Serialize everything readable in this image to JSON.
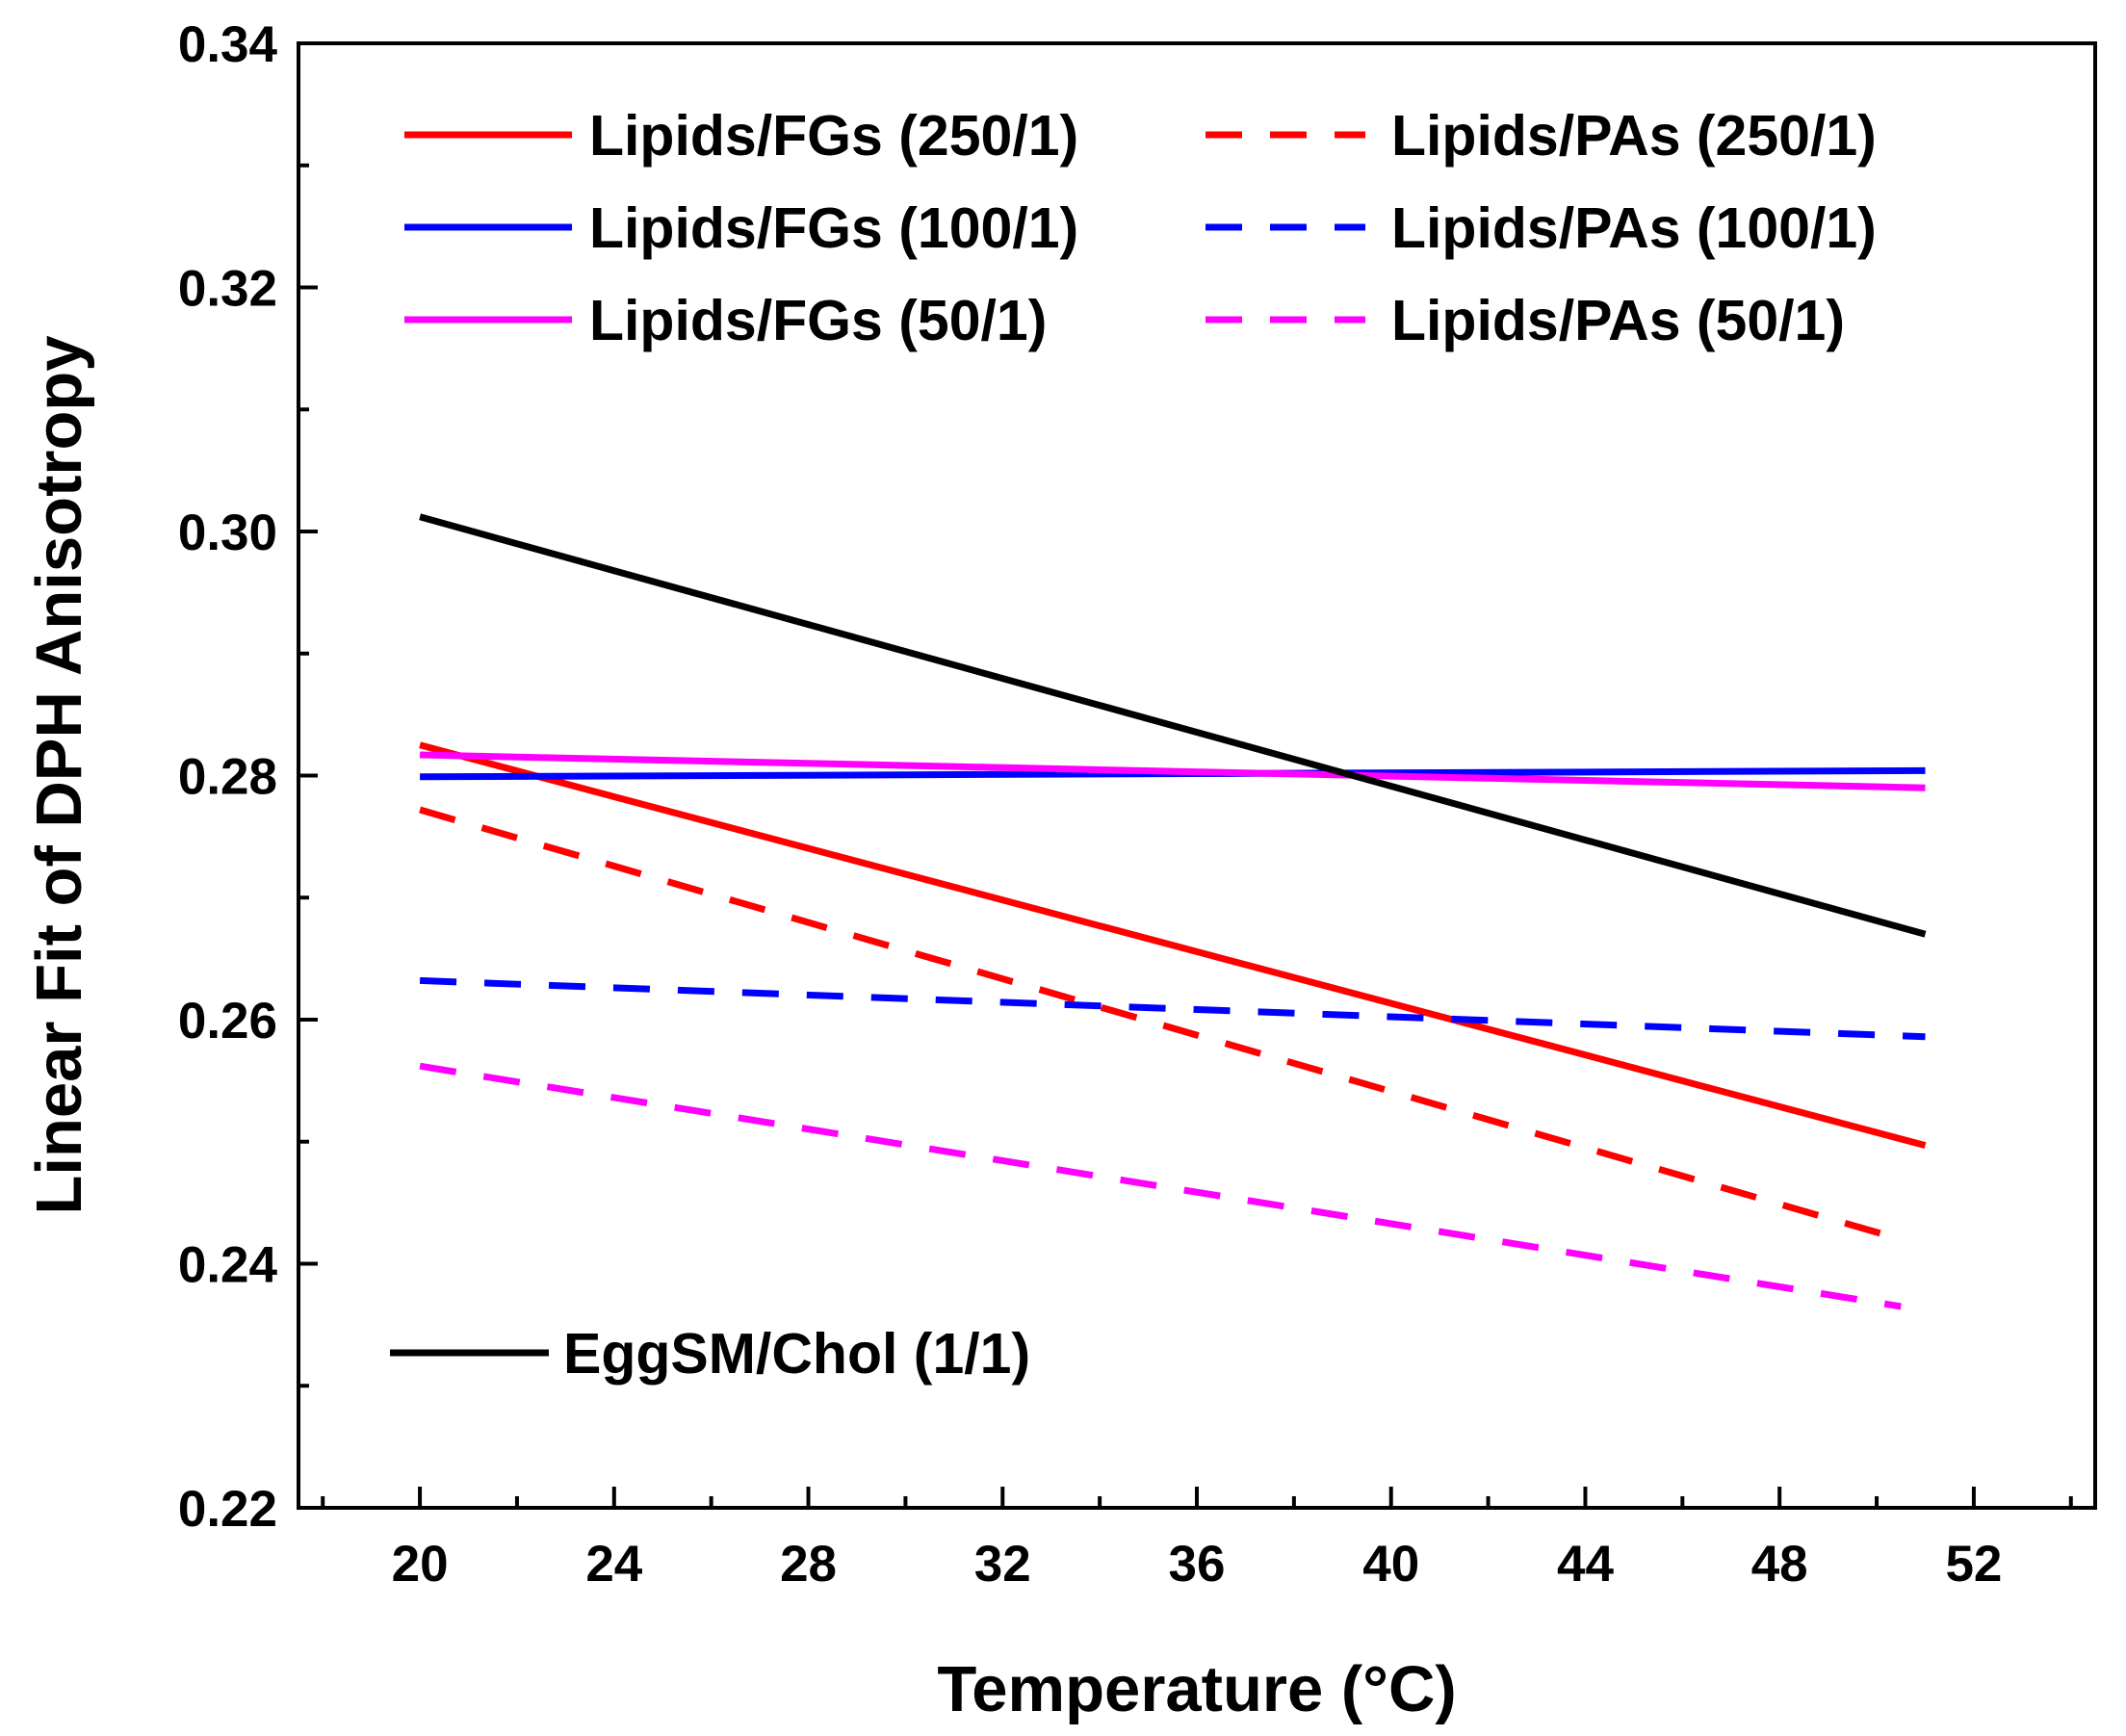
{
  "chart_data": {
    "type": "line",
    "title": "",
    "xlabel": "Temperature (°C)",
    "ylabel": "Linear Fit of DPH Anisotropy",
    "xlim": [
      17.5,
      54.5
    ],
    "ylim": [
      0.22,
      0.34
    ],
    "xticks": [
      20,
      24,
      28,
      32,
      36,
      40,
      44,
      48,
      52
    ],
    "xtick_labels": [
      "20",
      "24",
      "28",
      "32",
      "36",
      "40",
      "44",
      "48",
      "52"
    ],
    "yticks": [
      0.22,
      0.24,
      0.26,
      0.28,
      0.3,
      0.32,
      0.34
    ],
    "ytick_labels": [
      "0.22",
      "0.24",
      "0.26",
      "0.28",
      "0.30",
      "0.32",
      "0.34"
    ],
    "x_minor_step": 2,
    "y_minor_step": 0.01,
    "grid": false,
    "legend_position": "top",
    "series": [
      {
        "name": "Lipids/FGs (250/1)",
        "color": "#ff0000",
        "style": "solid",
        "x": [
          20,
          51
        ],
        "values": [
          0.2825,
          0.2497
        ]
      },
      {
        "name": "Lipids/FGs (100/1)",
        "color": "#0000ff",
        "style": "solid",
        "x": [
          20,
          51
        ],
        "values": [
          0.2799,
          0.2804
        ]
      },
      {
        "name": "Lipids/FGs (50/1)",
        "color": "#ff00ff",
        "style": "solid",
        "x": [
          20,
          51
        ],
        "values": [
          0.2817,
          0.279
        ]
      },
      {
        "name": "Lipids/PAs (250/1)",
        "color": "#ff0000",
        "style": "dashed",
        "x": [
          20,
          50.5
        ],
        "values": [
          0.2772,
          0.242
        ]
      },
      {
        "name": "Lipids/PAs (100/1)",
        "color": "#0000ff",
        "style": "dashed",
        "x": [
          20,
          51
        ],
        "values": [
          0.2632,
          0.2586
        ]
      },
      {
        "name": "Lipids/PAs (50/1)",
        "color": "#ff00ff",
        "style": "dashed",
        "x": [
          20,
          50.5
        ],
        "values": [
          0.2562,
          0.2365
        ]
      },
      {
        "name": "EggSM/Chol (1/1)",
        "color": "#000000",
        "style": "solid",
        "x": [
          20,
          51
        ],
        "values": [
          0.3012,
          0.267
        ]
      }
    ],
    "legend_layout": {
      "column_1": [
        "Lipids/FGs (250/1)",
        "Lipids/FGs (100/1)",
        "Lipids/FGs (50/1)"
      ],
      "column_2": [
        "Lipids/PAs (250/1)",
        "Lipids/PAs (100/1)",
        "Lipids/PAs (50/1)"
      ],
      "bottom_left": [
        "EggSM/Chol (1/1)"
      ]
    }
  }
}
